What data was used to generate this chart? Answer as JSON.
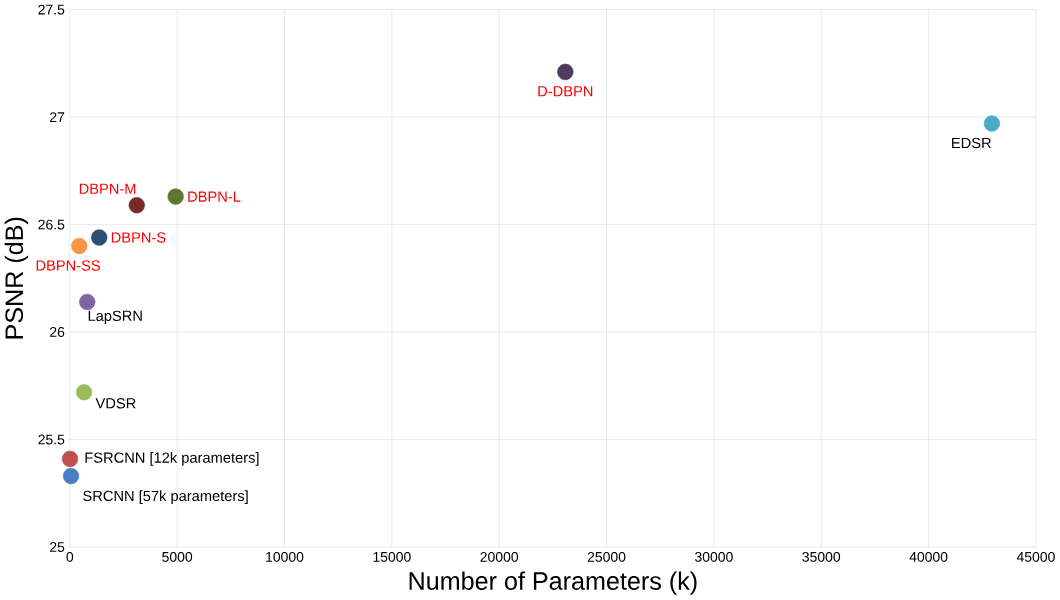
{
  "chart_data": {
    "type": "scatter",
    "xlabel": "Number of Parameters (k)",
    "ylabel": "PSNR (dB)",
    "xlim": [
      0,
      45000
    ],
    "ylim": [
      25,
      27.5
    ],
    "xticks": [
      0,
      5000,
      10000,
      15000,
      20000,
      25000,
      30000,
      35000,
      40000,
      45000
    ],
    "yticks": [
      25,
      {
        "value": 25.5,
        "label": "25.5"
      },
      26,
      {
        "value": 26.5,
        "label": "26.5"
      },
      27,
      {
        "value": 27.5,
        "label": "27.5"
      }
    ],
    "grid": true,
    "marker": "circle",
    "series": [
      {
        "name": "SRCNN [57k parameters]",
        "color": "#4a7fc4",
        "x": [
          57
        ],
        "values": [
          25.33
        ]
      },
      {
        "name": "FSRCNN [12k parameters]",
        "color": "#c0504d",
        "x": [
          12
        ],
        "values": [
          25.41
        ]
      },
      {
        "name": "VDSR",
        "color": "#9bbb59",
        "x": [
          665
        ],
        "values": [
          25.72
        ]
      },
      {
        "name": "LapSRN",
        "color": "#8064a2",
        "x": [
          812
        ],
        "values": [
          26.14
        ]
      },
      {
        "name": "DBPN-SS",
        "color": "#f79646",
        "x": [
          440
        ],
        "values": [
          26.4
        ]
      },
      {
        "name": "DBPN-S",
        "color": "#2c4d75",
        "x": [
          1370
        ],
        "values": [
          26.44
        ]
      },
      {
        "name": "DBPN-M",
        "color": "#772c2a",
        "x": [
          3120
        ],
        "values": [
          26.59
        ]
      },
      {
        "name": "DBPN-L",
        "color": "#5f7530",
        "x": [
          4930
        ],
        "values": [
          26.63
        ]
      },
      {
        "name": "D-DBPN",
        "color": "#4d3b62",
        "x": [
          23080
        ],
        "values": [
          27.21
        ]
      },
      {
        "name": "EDSR",
        "color": "#4bacc6",
        "x": [
          42950
        ],
        "values": [
          26.97
        ]
      }
    ]
  }
}
